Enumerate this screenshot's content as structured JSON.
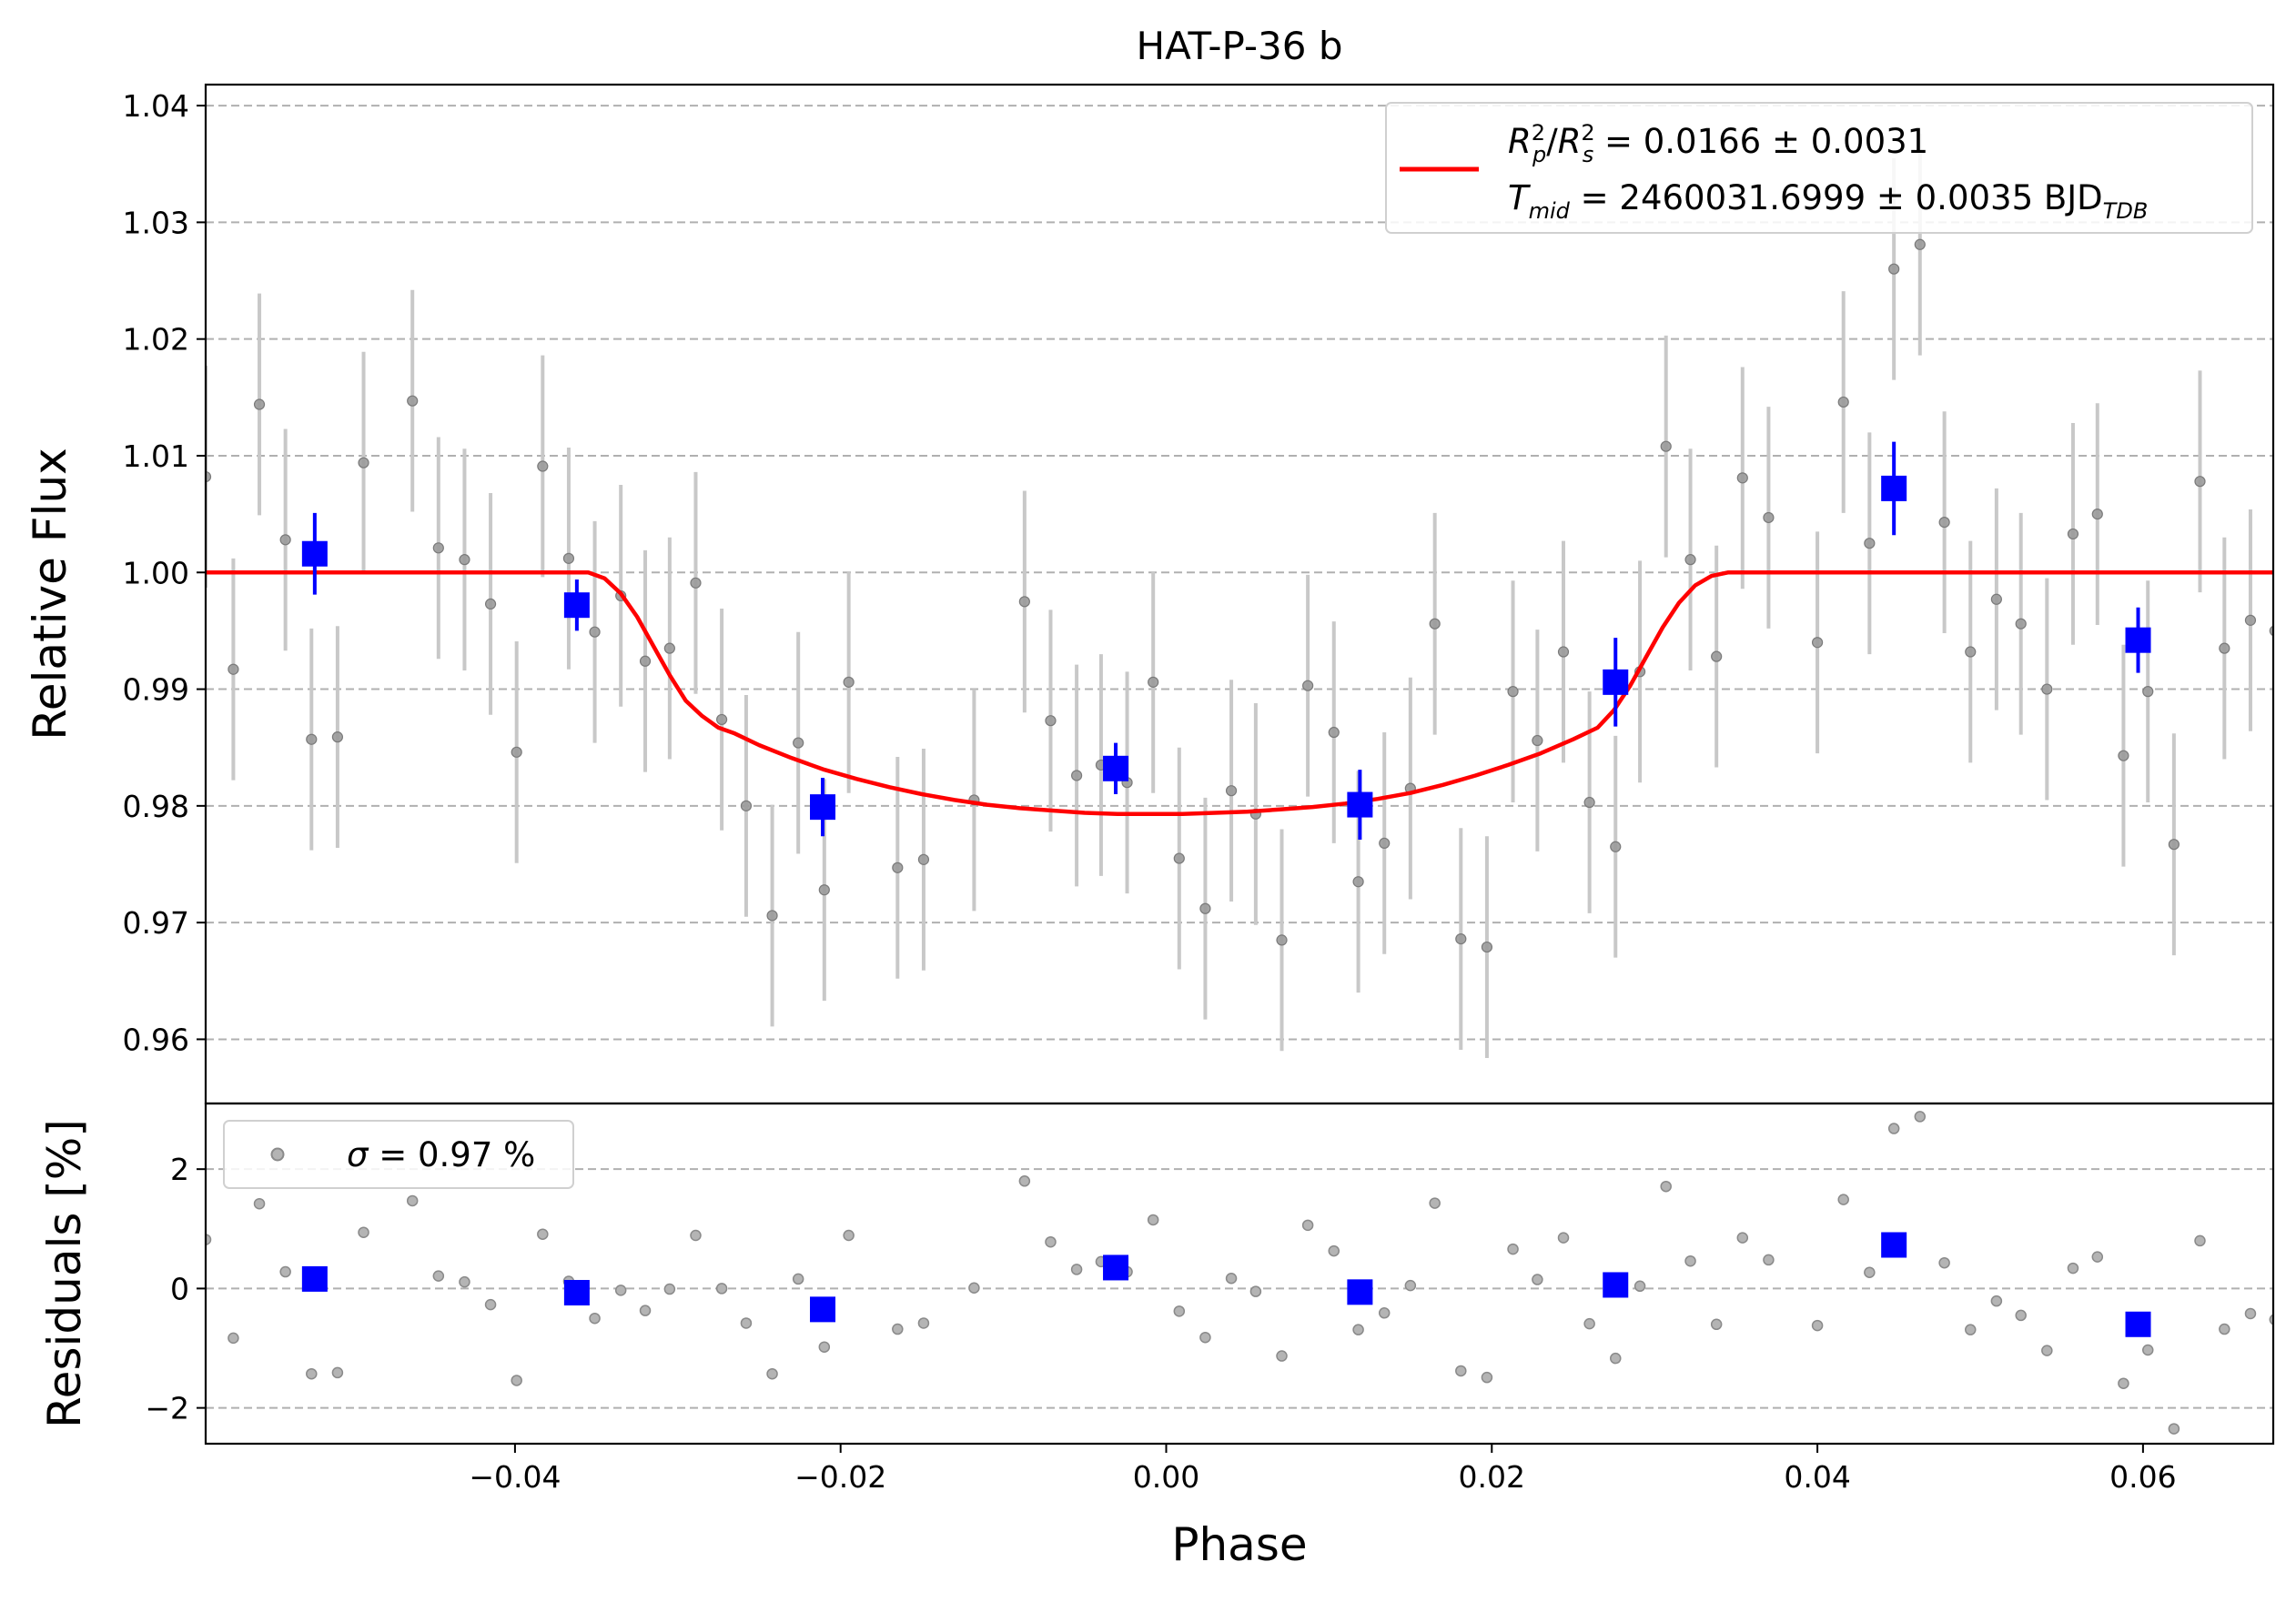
{
  "chart_data": [
    {
      "type": "scatter",
      "panel": "main",
      "title": "HAT-P-36 b",
      "xlabel": "",
      "ylabel": "Relative Flux",
      "xlim": [
        -0.059,
        0.068
      ],
      "ylim": [
        0.9545,
        1.0418
      ],
      "xticks": [
        -0.04,
        -0.02,
        0.0,
        0.02,
        0.04,
        0.06
      ],
      "yticks": [
        0.96,
        0.97,
        0.98,
        0.99,
        1.0,
        1.01,
        1.02,
        1.03,
        1.04
      ],
      "ytick_labels": [
        "0.96",
        "0.97",
        "0.98",
        "0.99",
        "1.00",
        "1.01",
        "1.02",
        "1.03",
        "1.04"
      ],
      "grid": "horizontal dashed",
      "legend_position": "top-right",
      "legend": {
        "model_entry": "R_p^2/R_s^2 = 0.0166 ± 0.0031",
        "tmid_entry": "T_mid = 2460031.6999 ± 0.0035 BJD_TDB",
        "line1": {
          "label_a": "R",
          "sub_a": "p",
          "sup_a": "2",
          "sep": "/",
          "label_b": "R",
          "sub_b": "s",
          "sup_b": "2",
          "value": " = 0.0166 ± 0.0031"
        },
        "line2": {
          "label": "T",
          "sub": "mid",
          "value": " = 2460031.6999 ± 0.0035 BJD",
          "unit_sub": "TDB"
        }
      },
      "colors": {
        "raw": "#808080",
        "raw_err": "#c8c8c8",
        "binned": "#0000ff",
        "model": "#ff0000",
        "grid": "#b0b0b0"
      },
      "series": [
        {
          "name": "raw",
          "err": 0.0095,
          "points": [
            [
              -0.059,
              1.0082
            ],
            [
              -0.0573,
              0.9917
            ],
            [
              -0.0557,
              1.0144
            ],
            [
              -0.0541,
              1.0028
            ],
            [
              -0.0525,
              0.9857
            ],
            [
              -0.0509,
              0.9859
            ],
            [
              -0.0493,
              1.0094
            ],
            [
              -0.0463,
              1.0147
            ],
            [
              -0.0447,
              1.0021
            ],
            [
              -0.0431,
              1.0011
            ],
            [
              -0.0415,
              0.9973
            ],
            [
              -0.0399,
              0.9846
            ],
            [
              -0.0383,
              1.0091
            ],
            [
              -0.0367,
              1.0012
            ],
            [
              -0.0351,
              0.9949
            ],
            [
              -0.0335,
              0.998
            ],
            [
              -0.032,
              0.9924
            ],
            [
              -0.0305,
              0.9935
            ],
            [
              -0.0289,
              0.9991
            ],
            [
              -0.0273,
              0.9874
            ],
            [
              -0.0258,
              0.98
            ],
            [
              -0.0242,
              0.9706
            ],
            [
              -0.0226,
              0.9854
            ],
            [
              -0.021,
              0.9728
            ],
            [
              -0.0195,
              0.9906
            ],
            [
              -0.0165,
              0.9747
            ],
            [
              -0.0149,
              0.9754
            ],
            [
              -0.0118,
              0.9805
            ],
            [
              -0.0087,
              0.9975
            ],
            [
              -0.0071,
              0.9873
            ],
            [
              -0.0055,
              0.9826
            ],
            [
              -0.004,
              0.9835
            ],
            [
              -0.0024,
              0.982
            ],
            [
              -0.0008,
              0.9906
            ],
            [
              0.0008,
              0.9755
            ],
            [
              0.0024,
              0.9712
            ],
            [
              0.004,
              0.9813
            ],
            [
              0.0055,
              0.9793
            ],
            [
              0.0071,
              0.9685
            ],
            [
              0.0087,
              0.9903
            ],
            [
              0.0103,
              0.9863
            ],
            [
              0.0118,
              0.9735
            ],
            [
              0.0134,
              0.9768
            ],
            [
              0.015,
              0.9815
            ],
            [
              0.0165,
              0.9956
            ],
            [
              0.0181,
              0.9686
            ],
            [
              0.0197,
              0.9679
            ],
            [
              0.0213,
              0.9898
            ],
            [
              0.0228,
              0.9856
            ],
            [
              0.0244,
              0.9932
            ],
            [
              0.026,
              0.9803
            ],
            [
              0.0276,
              0.9765
            ],
            [
              0.0291,
              0.9915
            ],
            [
              0.0307,
              1.0108
            ],
            [
              0.0322,
              1.0011
            ],
            [
              0.0338,
              0.9928
            ],
            [
              0.0354,
              1.0081
            ],
            [
              0.037,
              1.0047
            ],
            [
              0.04,
              0.994
            ],
            [
              0.0416,
              1.0146
            ],
            [
              0.0432,
              1.0025
            ],
            [
              0.0447,
              1.026
            ],
            [
              0.0463,
              1.0281
            ],
            [
              0.0478,
              1.0043
            ],
            [
              0.0494,
              0.9932
            ],
            [
              0.051,
              0.9977
            ],
            [
              0.0525,
              0.9956
            ],
            [
              0.0541,
              0.99
            ],
            [
              0.0557,
              1.0033
            ],
            [
              0.0572,
              1.005
            ],
            [
              0.0588,
              0.9843
            ],
            [
              0.0603,
              0.9898
            ],
            [
              0.0619,
              0.9767
            ],
            [
              0.0635,
              1.0078
            ],
            [
              0.065,
              0.9935
            ],
            [
              0.0666,
              0.9959
            ],
            [
              0.0681,
              0.995
            ]
          ]
        },
        {
          "name": "binned",
          "points": [
            [
              -0.0523,
              1.0016,
              0.0035
            ],
            [
              -0.0362,
              0.9972,
              0.0022
            ],
            [
              -0.0211,
              0.9799,
              0.0025
            ],
            [
              -0.0031,
              0.9832,
              0.0022
            ],
            [
              0.0119,
              0.9801,
              0.003
            ],
            [
              0.0276,
              0.9906,
              0.0038
            ],
            [
              0.0447,
              1.0072,
              0.004
            ],
            [
              0.0597,
              0.9942,
              0.0028
            ]
          ]
        },
        {
          "name": "R_p^2/R_s^2 = 0.0166 ± 0.0031",
          "model": "transit",
          "x": [
            -0.059,
            -0.0355,
            -0.0345,
            -0.0335,
            -0.0325,
            -0.0315,
            -0.0305,
            -0.0295,
            -0.0285,
            -0.0275,
            -0.0265,
            -0.025,
            -0.023,
            -0.021,
            -0.019,
            -0.017,
            -0.015,
            -0.013,
            -0.011,
            -0.009,
            -0.007,
            -0.005,
            -0.003,
            -0.001,
            0.001,
            0.003,
            0.005,
            0.007,
            0.009,
            0.011,
            0.013,
            0.015,
            0.017,
            0.019,
            0.021,
            0.023,
            0.025,
            0.0265,
            0.0275,
            0.0285,
            0.0295,
            0.0305,
            0.0315,
            0.0325,
            0.0335,
            0.0345,
            0.0355,
            0.068
          ],
          "y": [
            1.0,
            1.0,
            0.9995,
            0.9982,
            0.9962,
            0.9937,
            0.9912,
            0.989,
            0.9877,
            0.9867,
            0.9862,
            0.9852,
            0.9841,
            0.9831,
            0.9823,
            0.9816,
            0.981,
            0.9805,
            0.9801,
            0.9798,
            0.9796,
            0.9794,
            0.9793,
            0.9793,
            0.9793,
            0.9794,
            0.9795,
            0.9797,
            0.9799,
            0.9802,
            0.9806,
            0.9811,
            0.9818,
            0.9826,
            0.9835,
            0.9845,
            0.9857,
            0.9867,
            0.9882,
            0.9903,
            0.9928,
            0.9953,
            0.9974,
            0.9989,
            0.9997,
            1.0,
            1.0,
            1.0
          ]
        }
      ]
    },
    {
      "type": "scatter",
      "panel": "residuals",
      "xlabel": "Phase",
      "ylabel": "Residuals [%]",
      "xlim": [
        -0.059,
        0.068
      ],
      "ylim": [
        -2.6,
        3.1
      ],
      "xticks": [
        -0.04,
        -0.02,
        0.0,
        0.02,
        0.04,
        0.06
      ],
      "xtick_labels": [
        "−0.04",
        "−0.02",
        "0.00",
        "0.02",
        "0.04",
        "0.06"
      ],
      "yticks": [
        -2,
        0,
        2
      ],
      "ytick_labels": [
        "−2",
        "0",
        "2"
      ],
      "grid": "horizontal dashed",
      "legend_position": "top-left",
      "legend": {
        "label": "σ = 0.97 %",
        "symbol": "σ",
        "value": " = 0.97 %"
      },
      "series": [
        {
          "name": "σ = 0.97 %",
          "points": [
            [
              -0.059,
              0.82
            ],
            [
              -0.0573,
              -0.83
            ],
            [
              -0.0557,
              1.42
            ],
            [
              -0.0541,
              0.28
            ],
            [
              -0.0525,
              -1.43
            ],
            [
              -0.0509,
              -1.41
            ],
            [
              -0.0493,
              0.94
            ],
            [
              -0.0463,
              1.47
            ],
            [
              -0.0447,
              0.21
            ],
            [
              -0.0431,
              0.11
            ],
            [
              -0.0415,
              -0.27
            ],
            [
              -0.0399,
              -1.54
            ],
            [
              -0.0383,
              0.91
            ],
            [
              -0.0367,
              0.12
            ],
            [
              -0.0351,
              -0.5
            ],
            [
              -0.0335,
              -0.03
            ],
            [
              -0.032,
              -0.37
            ],
            [
              -0.0305,
              -0.01
            ],
            [
              -0.0289,
              0.89
            ],
            [
              -0.0273,
              0.0
            ],
            [
              -0.0258,
              -0.58
            ],
            [
              -0.0242,
              -1.43
            ],
            [
              -0.0226,
              0.16
            ],
            [
              -0.021,
              -0.98
            ],
            [
              -0.0195,
              0.89
            ],
            [
              -0.0165,
              -0.68
            ],
            [
              -0.0149,
              -0.58
            ],
            [
              -0.0118,
              0.01
            ],
            [
              -0.0087,
              1.8
            ],
            [
              -0.0071,
              0.78
            ],
            [
              -0.0055,
              0.32
            ],
            [
              -0.004,
              0.45
            ],
            [
              -0.0024,
              0.28
            ],
            [
              -0.0008,
              1.15
            ],
            [
              0.0008,
              -0.38
            ],
            [
              0.0024,
              -0.82
            ],
            [
              0.004,
              0.17
            ],
            [
              0.0055,
              -0.05
            ],
            [
              0.0071,
              -1.13
            ],
            [
              0.0087,
              1.06
            ],
            [
              0.0103,
              0.63
            ],
            [
              0.0118,
              -0.69
            ],
            [
              0.0134,
              -0.41
            ],
            [
              0.015,
              0.05
            ],
            [
              0.0165,
              1.43
            ],
            [
              0.0181,
              -1.38
            ],
            [
              0.0197,
              -1.49
            ],
            [
              0.0213,
              0.66
            ],
            [
              0.0228,
              0.15
            ],
            [
              0.0244,
              0.85
            ],
            [
              0.026,
              -0.59
            ],
            [
              0.0276,
              -1.17
            ],
            [
              0.0291,
              0.04
            ],
            [
              0.0307,
              1.71
            ],
            [
              0.0322,
              0.46
            ],
            [
              0.0338,
              -0.6
            ],
            [
              0.0354,
              0.85
            ],
            [
              0.037,
              0.48
            ],
            [
              0.04,
              -0.62
            ],
            [
              0.0416,
              1.49
            ],
            [
              0.0432,
              0.27
            ],
            [
              0.0447,
              2.68
            ],
            [
              0.0463,
              2.88
            ],
            [
              0.0478,
              0.43
            ],
            [
              0.0494,
              -0.69
            ],
            [
              0.051,
              -0.21
            ],
            [
              0.0525,
              -0.45
            ],
            [
              0.0541,
              -1.04
            ],
            [
              0.0557,
              0.34
            ],
            [
              0.0572,
              0.53
            ],
            [
              0.0588,
              -1.59
            ],
            [
              0.0603,
              -1.03
            ],
            [
              0.0619,
              -2.35
            ],
            [
              0.0635,
              0.8
            ],
            [
              0.065,
              -0.68
            ],
            [
              0.0666,
              -0.42
            ],
            [
              0.0681,
              -0.52
            ]
          ]
        },
        {
          "name": "binned",
          "points": [
            [
              -0.0523,
              0.16
            ],
            [
              -0.0362,
              -0.07
            ],
            [
              -0.0211,
              -0.35
            ],
            [
              -0.0031,
              0.35
            ],
            [
              0.0119,
              -0.06
            ],
            [
              0.0276,
              0.06
            ],
            [
              0.0447,
              0.73
            ],
            [
              0.0597,
              -0.6
            ]
          ]
        }
      ]
    }
  ]
}
